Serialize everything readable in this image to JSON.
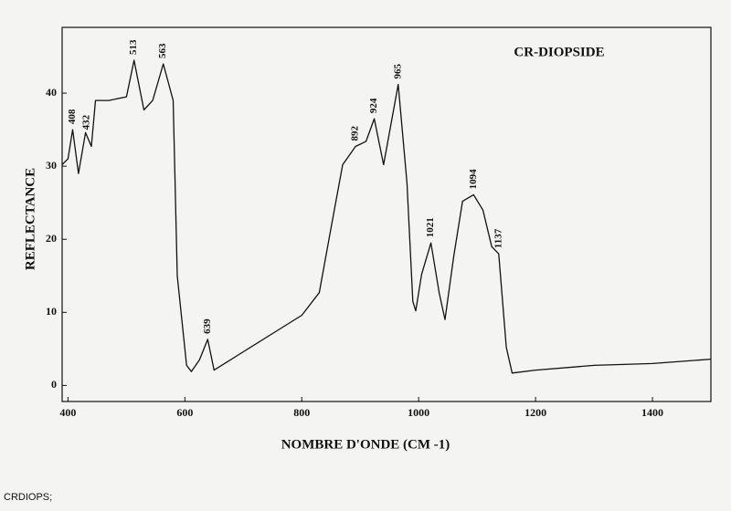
{
  "chart_data": {
    "type": "line",
    "title": "CR-DIOPSIDE",
    "x_label": "NOMBRE D'ONDE (CM -1)",
    "y_label": "REFLECTANCE",
    "footer": "CRDIOPS;",
    "series": [
      {
        "name": "CR-DIOPSIDE",
        "color": "#111111",
        "x": [
          390,
          400,
          408,
          418,
          430,
          440,
          447,
          470,
          500,
          513,
          530,
          545,
          563,
          580,
          587,
          603,
          611,
          625,
          639,
          650,
          700,
          750,
          800,
          830,
          850,
          870,
          892,
          910,
          924,
          940,
          965,
          980,
          990,
          995,
          1005,
          1021,
          1035,
          1045,
          1060,
          1075,
          1094,
          1110,
          1125,
          1137,
          1150,
          1160,
          1200,
          1300,
          1400,
          1500
        ],
        "values": [
          30.2,
          31,
          35,
          29,
          34.6,
          32.7,
          39,
          39,
          39.5,
          44.5,
          37.7,
          39,
          44,
          39,
          15,
          2.75,
          1.9,
          3.5,
          6.3,
          2.1,
          4.6,
          7.1,
          9.6,
          12.7,
          21.5,
          30.2,
          32.7,
          33.4,
          36.5,
          30.2,
          41.2,
          27.7,
          11.5,
          10.2,
          15.2,
          19.5,
          12.7,
          9,
          17.7,
          25.2,
          26.1,
          24,
          19,
          18,
          5.2,
          1.7,
          2.1,
          2.75,
          3,
          3.6
        ]
      }
    ],
    "peak_labels": [
      408,
      432,
      513,
      563,
      639,
      892,
      924,
      965,
      1021,
      1094,
      1137
    ],
    "xlim": [
      390,
      1500
    ],
    "ylim": [
      -2.2,
      49
    ],
    "xticks": [
      400,
      600,
      800,
      1000,
      1200,
      1400
    ],
    "yticks": [
      0,
      10,
      20,
      30,
      40
    ]
  }
}
